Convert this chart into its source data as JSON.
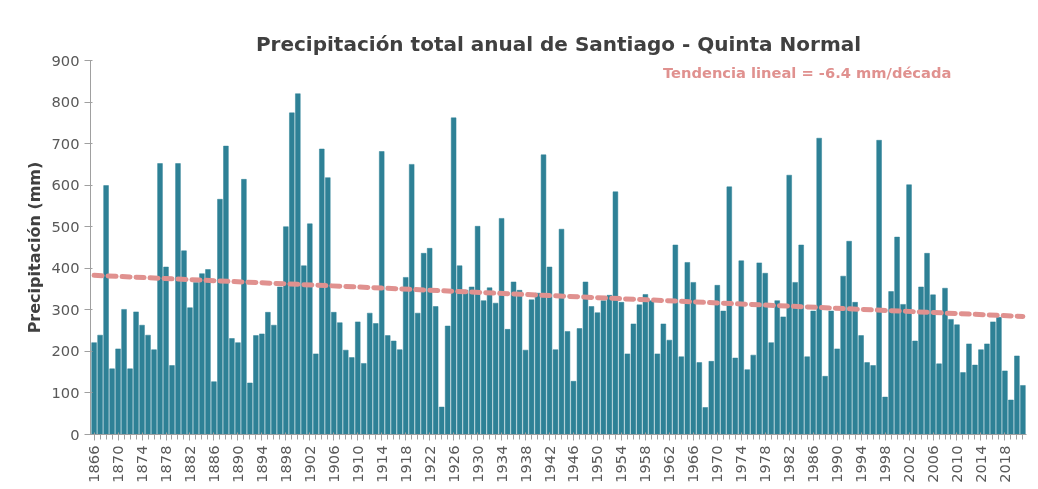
{
  "chart_data": {
    "type": "bar",
    "title": "Precipitación total anual de Santiago - Quinta Normal",
    "ylabel": "Precipitación (mm)",
    "x": [
      1866,
      1867,
      1868,
      1869,
      1870,
      1871,
      1872,
      1873,
      1874,
      1875,
      1876,
      1877,
      1878,
      1879,
      1880,
      1881,
      1882,
      1883,
      1884,
      1885,
      1886,
      1887,
      1888,
      1889,
      1890,
      1891,
      1892,
      1893,
      1894,
      1895,
      1896,
      1897,
      1898,
      1899,
      1900,
      1901,
      1902,
      1903,
      1904,
      1905,
      1906,
      1907,
      1908,
      1909,
      1910,
      1911,
      1912,
      1913,
      1914,
      1915,
      1916,
      1917,
      1918,
      1919,
      1920,
      1921,
      1922,
      1923,
      1924,
      1925,
      1926,
      1927,
      1928,
      1929,
      1930,
      1931,
      1932,
      1933,
      1934,
      1935,
      1936,
      1937,
      1938,
      1939,
      1940,
      1941,
      1942,
      1943,
      1944,
      1945,
      1946,
      1947,
      1948,
      1949,
      1950,
      1951,
      1952,
      1953,
      1954,
      1955,
      1956,
      1957,
      1958,
      1959,
      1960,
      1961,
      1962,
      1963,
      1964,
      1965,
      1966,
      1967,
      1968,
      1969,
      1970,
      1971,
      1972,
      1973,
      1974,
      1975,
      1976,
      1977,
      1978,
      1979,
      1980,
      1981,
      1982,
      1983,
      1984,
      1985,
      1986,
      1987,
      1988,
      1989,
      1990,
      1991,
      1992,
      1993,
      1994,
      1995,
      1996,
      1997,
      1998,
      1999,
      2000,
      2001,
      2002,
      2003,
      2004,
      2005,
      2006,
      2007,
      2008,
      2009,
      2010,
      2011,
      2012,
      2013,
      2014,
      2015,
      2016,
      2017,
      2018,
      2019,
      2020,
      2021
    ],
    "series": [
      {
        "color": "#2e8196",
        "values": [
          221,
          239,
          599,
          158,
          206,
          301,
          158,
          295,
          263,
          239,
          204,
          652,
          403,
          166,
          652,
          442,
          305,
          366,
          387,
          397,
          127,
          566,
          694,
          231,
          221,
          614,
          124,
          238,
          242,
          294,
          263,
          355,
          500,
          774,
          820,
          406,
          507,
          194,
          687,
          618,
          294,
          269,
          203,
          185,
          271,
          171,
          292,
          267,
          681,
          238,
          225,
          204,
          378,
          650,
          292,
          436,
          448,
          308,
          66,
          261,
          762,
          406,
          347,
          355,
          501,
          322,
          353,
          316,
          520,
          253,
          367,
          347,
          203,
          324,
          340,
          673,
          403,
          204,
          494,
          248,
          128,
          255,
          367,
          308,
          293,
          322,
          335,
          584,
          318,
          194,
          266,
          312,
          337,
          322,
          194,
          266,
          227,
          456,
          187,
          414,
          366,
          173,
          65,
          176,
          359,
          297,
          596,
          184,
          418,
          156,
          191,
          413,
          388,
          221,
          322,
          283,
          624,
          366,
          456,
          187,
          297,
          713,
          140,
          297,
          206,
          381,
          465,
          318,
          238,
          173,
          166,
          708,
          90,
          344,
          475,
          313,
          601,
          225,
          355,
          436,
          336,
          170,
          352,
          277,
          264,
          149,
          218,
          167,
          204,
          218,
          271,
          282,
          153,
          83,
          189,
          118
        ]
      },
      {
        "type": "line",
        "name": "Tendencia lineal = -6.4 mm/década",
        "color": "#e0918f",
        "line_style": "dashed",
        "x": [
          1866,
          2021
        ],
        "values": [
          383,
          284
        ]
      }
    ],
    "xlim": [
      1865.4,
      2021.6
    ],
    "xticks": [
      1866,
      1870,
      1874,
      1878,
      1882,
      1886,
      1890,
      1894,
      1898,
      1902,
      1906,
      1910,
      1914,
      1918,
      1922,
      1926,
      1930,
      1934,
      1938,
      1942,
      1946,
      1950,
      1954,
      1958,
      1962,
      1966,
      1970,
      1974,
      1978,
      1982,
      1986,
      1990,
      1994,
      1998,
      2002,
      2006,
      2010,
      2014,
      2018
    ],
    "ylim": [
      0,
      900
    ],
    "yticks": [
      0,
      100,
      200,
      300,
      400,
      500,
      600,
      700,
      800,
      900
    ],
    "grid": false
  }
}
